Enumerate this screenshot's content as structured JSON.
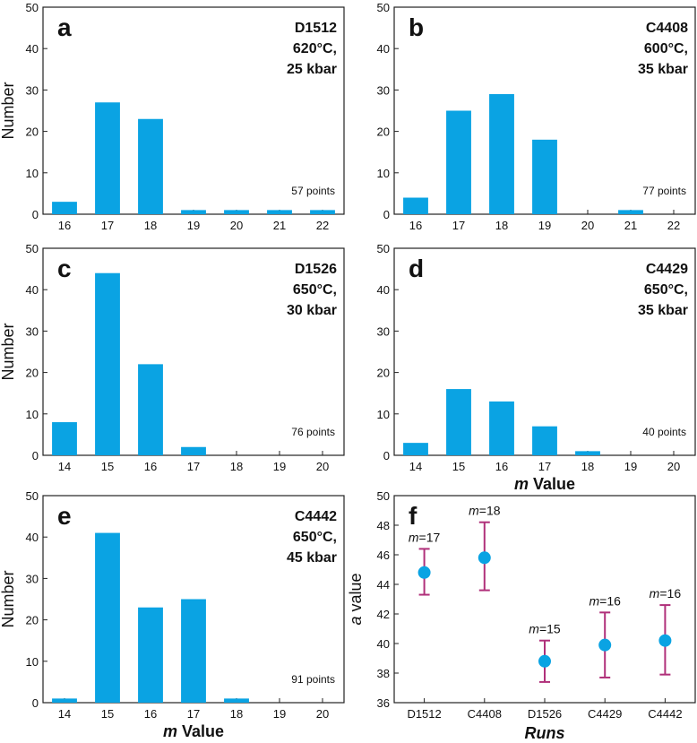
{
  "colors": {
    "bar": "#0aa3e3",
    "point": "#0aa3e3",
    "errorbar": "#b0307a",
    "axis": "#222222"
  },
  "chart_data": [
    {
      "id": "a",
      "type": "bar",
      "letter": "a",
      "run_lines": [
        "D1512",
        "620°C,",
        "25 kbar"
      ],
      "categories": [
        "16",
        "17",
        "18",
        "19",
        "20",
        "21",
        "22"
      ],
      "values": [
        3,
        27,
        23,
        1,
        1,
        1,
        1
      ],
      "ylim": [
        0,
        50
      ],
      "yticks": [
        "0",
        "10",
        "20",
        "30",
        "40",
        "50"
      ],
      "ylabel": "Number",
      "xlabel": "",
      "points_label": "57 points"
    },
    {
      "id": "b",
      "type": "bar",
      "letter": "b",
      "run_lines": [
        "C4408",
        "600°C,",
        "35 kbar"
      ],
      "categories": [
        "16",
        "17",
        "18",
        "19",
        "20",
        "21",
        "22"
      ],
      "values": [
        4,
        25,
        29,
        18,
        0,
        1,
        0
      ],
      "ylim": [
        0,
        50
      ],
      "yticks": [
        "0",
        "10",
        "20",
        "30",
        "40",
        "50"
      ],
      "ylabel": "",
      "xlabel": "",
      "points_label": "77 points"
    },
    {
      "id": "c",
      "type": "bar",
      "letter": "c",
      "run_lines": [
        "D1526",
        "650°C,",
        "30 kbar"
      ],
      "categories": [
        "14",
        "15",
        "16",
        "17",
        "18",
        "19",
        "20"
      ],
      "values": [
        8,
        44,
        22,
        2,
        0,
        0,
        0
      ],
      "ylim": [
        0,
        50
      ],
      "yticks": [
        "0",
        "10",
        "20",
        "30",
        "40",
        "50"
      ],
      "ylabel": "Number",
      "xlabel": "",
      "points_label": "76 points"
    },
    {
      "id": "d",
      "type": "bar",
      "letter": "d",
      "run_lines": [
        "C4429",
        "650°C,",
        "35 kbar"
      ],
      "categories": [
        "14",
        "15",
        "16",
        "17",
        "18",
        "19",
        "20"
      ],
      "values": [
        3,
        16,
        13,
        7,
        1,
        0,
        0
      ],
      "ylim": [
        0,
        50
      ],
      "yticks": [
        "0",
        "10",
        "20",
        "30",
        "40",
        "50"
      ],
      "ylabel": "",
      "xlabel_italic": "m",
      "xlabel": " Value",
      "points_label": "40 points"
    },
    {
      "id": "e",
      "type": "bar",
      "letter": "e",
      "run_lines": [
        "C4442",
        "650°C,",
        "45 kbar"
      ],
      "categories": [
        "14",
        "15",
        "16",
        "17",
        "18",
        "19",
        "20"
      ],
      "values": [
        1,
        41,
        23,
        25,
        1,
        0,
        0
      ],
      "ylim": [
        0,
        50
      ],
      "yticks": [
        "0",
        "10",
        "20",
        "30",
        "40",
        "50"
      ],
      "ylabel": "Number",
      "xlabel_italic": "m",
      "xlabel": " Value",
      "points_label": "91 points"
    },
    {
      "id": "f",
      "type": "scatter",
      "letter": "f",
      "categories": [
        "D1512",
        "C4408",
        "D1526",
        "C4429",
        "C4442"
      ],
      "values": [
        44.8,
        45.8,
        38.8,
        39.9,
        40.2
      ],
      "err_low": [
        43.3,
        43.6,
        37.4,
        37.7,
        37.9
      ],
      "err_high": [
        46.4,
        48.2,
        40.2,
        42.1,
        42.6
      ],
      "m_values": [
        "17",
        "18",
        "15",
        "16",
        "16"
      ],
      "m_prefix": "m",
      "ylim": [
        36,
        50
      ],
      "yticks": [
        "36",
        "38",
        "40",
        "42",
        "44",
        "46",
        "48",
        "50"
      ],
      "ylabel_italic": "a",
      "ylabel": " value",
      "xlabel": "Runs"
    }
  ]
}
